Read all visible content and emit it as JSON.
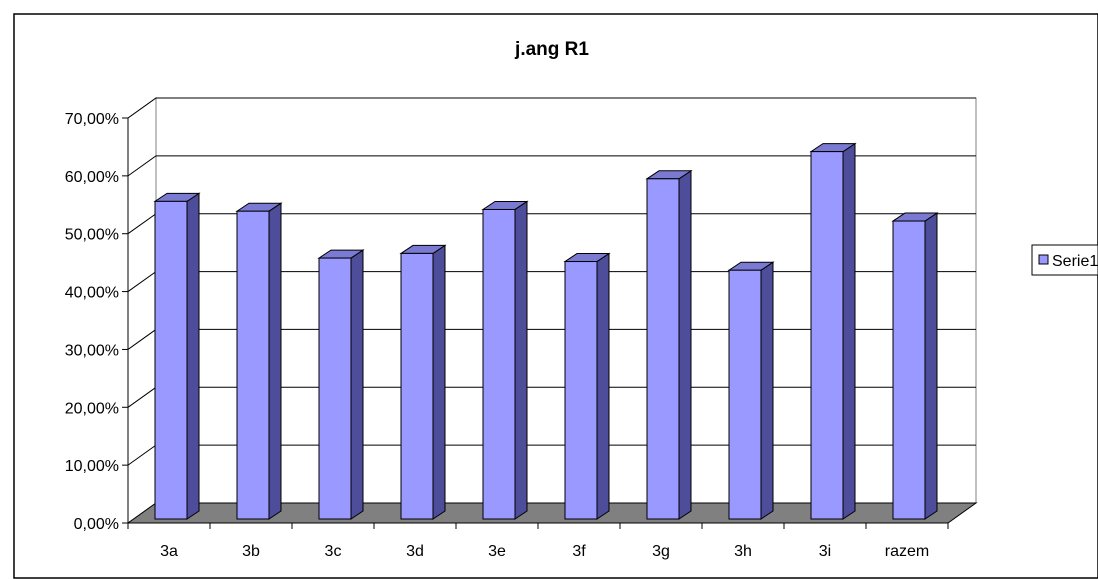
{
  "chart_data": {
    "type": "bar",
    "title": "j.ang R1",
    "categories": [
      "3a",
      "3b",
      "3c",
      "3d",
      "3e",
      "3f",
      "3g",
      "3h",
      "3i",
      "razem"
    ],
    "series": [
      {
        "name": "Serie1",
        "values": [
          0.549,
          0.532,
          0.451,
          0.459,
          0.535,
          0.445,
          0.588,
          0.43,
          0.635,
          0.515
        ]
      }
    ],
    "y_tick_labels": [
      "0,00%",
      "10,00%",
      "20,00%",
      "30,00%",
      "40,00%",
      "50,00%",
      "60,00%",
      "70,00%"
    ],
    "ylim": [
      0,
      0.7
    ],
    "legend_position": "right",
    "grid": true,
    "three_d": true,
    "colors": {
      "bar_front": "#9999ff",
      "bar_side": "#4d4d9a",
      "bar_top": "#7a7ad2",
      "floor": "#808080",
      "background": "#ffffff",
      "grid": "#000000"
    }
  }
}
